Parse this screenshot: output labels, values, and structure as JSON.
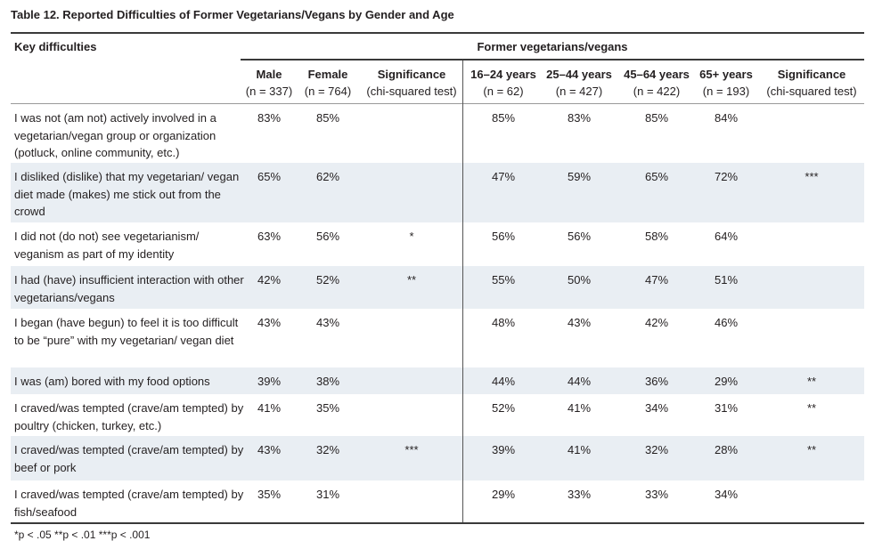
{
  "title": "Table 12. Reported Difficulties of Former Vegetarians/Vegans by Gender and Age",
  "header": {
    "key": "Key difficulties",
    "group": "Former vegetarians/vegans",
    "columns": [
      [
        "Male",
        "(n = 337)"
      ],
      [
        "Female",
        "(n = 764)"
      ],
      [
        "Significance",
        "(chi-squared test)"
      ],
      [
        "16–24 years",
        "(n = 62)"
      ],
      [
        "25–44 years",
        "(n = 427)"
      ],
      [
        "45–64 years",
        "(n = 422)"
      ],
      [
        "65+ years",
        "(n = 193)"
      ],
      [
        "Significance",
        "(chi-squared test)"
      ]
    ]
  },
  "rows": [
    {
      "label": "I was not (am not) actively involved in a vegetarian/vegan group or organization (potluck, online community, etc.)",
      "values": [
        "83%",
        "85%",
        "",
        "85%",
        "83%",
        "85%",
        "84%",
        ""
      ]
    },
    {
      "label": "I disliked (dislike) that my vegetarian/ vegan diet made (makes) me stick out from the crowd",
      "values": [
        "65%",
        "62%",
        "",
        "47%",
        "59%",
        "65%",
        "72%",
        "***"
      ]
    },
    {
      "label": "I did not (do not) see vegetarianism/ veganism as part of my identity",
      "values": [
        "63%",
        "56%",
        "*",
        "56%",
        "56%",
        "58%",
        "64%",
        ""
      ]
    },
    {
      "label": "I had (have) insufficient interaction with other vegetarians/vegans",
      "values": [
        "42%",
        "52%",
        "**",
        "55%",
        "50%",
        "47%",
        "51%",
        ""
      ]
    },
    {
      "label": "I began (have begun) to feel it is too difficult to be “pure” with my vegetarian/ vegan diet",
      "values": [
        "43%",
        "43%",
        "",
        "48%",
        "43%",
        "42%",
        "46%",
        ""
      ]
    },
    {
      "label": "I was (am) bored with my food options",
      "values": [
        "39%",
        "38%",
        "",
        "44%",
        "44%",
        "36%",
        "29%",
        "**"
      ]
    },
    {
      "label": "I craved/was tempted (crave/am tempted) by poultry (chicken, turkey, etc.)",
      "values": [
        "41%",
        "35%",
        "",
        "52%",
        "41%",
        "34%",
        "31%",
        "**"
      ]
    },
    {
      "label": "I craved/was tempted (crave/am tempted) by beef or pork",
      "values": [
        "43%",
        "32%",
        "***",
        "39%",
        "41%",
        "32%",
        "28%",
        "**"
      ]
    },
    {
      "label": "I craved/was tempted (crave/am tempted) by fish/seafood",
      "values": [
        "35%",
        "31%",
        "",
        "29%",
        "33%",
        "33%",
        "34%",
        ""
      ]
    }
  ],
  "footnote": "*p < .05 **p < .01 ***p < .001"
}
